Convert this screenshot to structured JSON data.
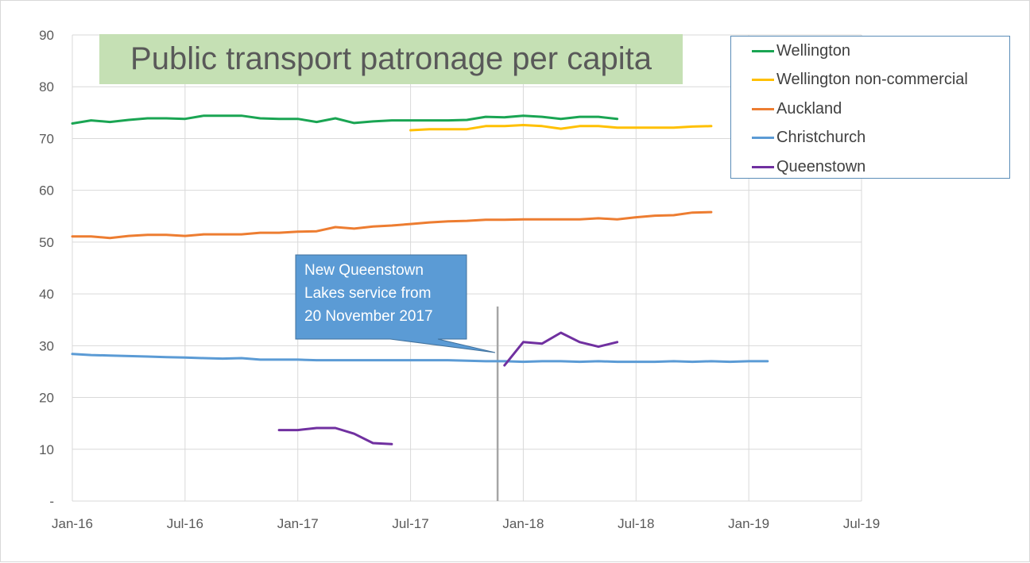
{
  "chart_data": {
    "type": "line",
    "title": "Public transport patronage per capita",
    "xlabel": "",
    "ylabel": "",
    "ylim": [
      0,
      90
    ],
    "yticks": [
      0,
      10,
      20,
      30,
      40,
      50,
      60,
      70,
      80,
      90
    ],
    "ytick_labels": [
      "-",
      "10",
      "20",
      "30",
      "40",
      "50",
      "60",
      "70",
      "80",
      "90"
    ],
    "x_range_months": [
      "2016-01",
      "2019-07"
    ],
    "xtick_labels": [
      "Jan-16",
      "Jul-16",
      "Jan-17",
      "Jul-17",
      "Jan-18",
      "Jul-18",
      "Jan-19",
      "Jul-19"
    ],
    "grid": true,
    "legend_position": "top-right",
    "series": [
      {
        "name": "Wellington",
        "color": "#1aa553",
        "start": "2016-01",
        "values": [
          72.9,
          73.5,
          73.2,
          73.6,
          73.9,
          73.9,
          73.8,
          74.4,
          74.4,
          74.4,
          73.9,
          73.8,
          73.8,
          73.2,
          73.9,
          73.0,
          73.3,
          73.5,
          73.5,
          73.5,
          73.5,
          73.6,
          74.2,
          74.1,
          74.4,
          74.2,
          73.8,
          74.2,
          74.2,
          73.8
        ]
      },
      {
        "name": "Wellington non-commercial",
        "color": "#ffc000",
        "start": "2017-07",
        "values": [
          71.6,
          71.8,
          71.8,
          71.8,
          72.4,
          72.4,
          72.6,
          72.4,
          71.9,
          72.4,
          72.4,
          72.1,
          72.1,
          72.1,
          72.1,
          72.3,
          72.4
        ]
      },
      {
        "name": "Auckland",
        "color": "#ed7d31",
        "start": "2016-01",
        "values": [
          51.1,
          51.1,
          50.8,
          51.2,
          51.4,
          51.4,
          51.2,
          51.5,
          51.5,
          51.5,
          51.8,
          51.8,
          52.0,
          52.1,
          52.9,
          52.6,
          53.0,
          53.2,
          53.5,
          53.8,
          54.0,
          54.1,
          54.3,
          54.3,
          54.4,
          54.4,
          54.4,
          54.4,
          54.6,
          54.4,
          54.8,
          55.1,
          55.2,
          55.7,
          55.8
        ]
      },
      {
        "name": "Christchurch",
        "color": "#5b9bd5",
        "start": "2016-01",
        "values": [
          28.4,
          28.2,
          28.1,
          28.0,
          27.9,
          27.8,
          27.7,
          27.6,
          27.5,
          27.6,
          27.3,
          27.3,
          27.3,
          27.2,
          27.2,
          27.2,
          27.2,
          27.2,
          27.2,
          27.2,
          27.2,
          27.1,
          27.0,
          27.0,
          26.9,
          27.0,
          27.0,
          26.9,
          27.0,
          26.9,
          26.9,
          26.9,
          27.0,
          26.9,
          27.0,
          26.9,
          27.0,
          27.0
        ]
      },
      {
        "name": "Queenstown",
        "color": "#7030a0",
        "segments": [
          {
            "start": "2016-12",
            "values": [
              13.7,
              13.7,
              14.1,
              14.1,
              13.0,
              11.2,
              11.0
            ]
          },
          {
            "start": "2017-12",
            "values": [
              26.2,
              30.7,
              30.4,
              32.5,
              30.7,
              29.8,
              30.7
            ]
          }
        ]
      }
    ],
    "annotations": [
      {
        "type": "callout",
        "text_lines": [
          "New Queenstown",
          "Lakes service from",
          "20 November 2017"
        ],
        "fill": "#5b9bd5",
        "text_color": "#ffffff"
      },
      {
        "type": "vertical-line",
        "at": "2017-11-20",
        "color": "#a6a6a6"
      }
    ]
  },
  "colors": {
    "title_bg": "#c5e0b4",
    "text": "#595959",
    "grid": "#d9d9d9",
    "legend_border": "#5b8db8"
  }
}
